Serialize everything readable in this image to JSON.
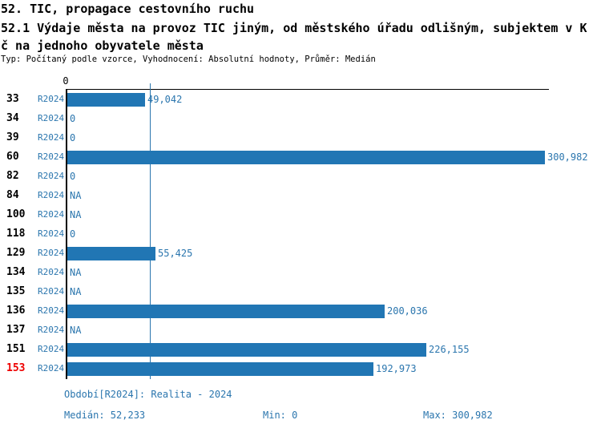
{
  "header": {
    "title": "52. TIC, propagace cestovního ruchu",
    "subtitle_lines": [
      "52.1 Výdaje města na provoz TIC jiným, od městského úřadu odlišným, subjektem v K",
      "č na jednoho obyvatele města"
    ],
    "meta": "Typ: Počítaný podle vzorce, Vyhodnocení: Absolutní hodnoty, Průměr: Medián"
  },
  "chart_data": {
    "type": "bar",
    "orientation": "horizontal",
    "title": "52.1 Výdaje města na provoz TIC jiným, od městského úřadu odlišným, subjektem v Kč na jednoho obyvatele města",
    "series_name": "R2024",
    "zero_tick": "0",
    "categories": [
      "33",
      "34",
      "39",
      "60",
      "82",
      "84",
      "100",
      "118",
      "129",
      "134",
      "135",
      "136",
      "137",
      "151",
      "153"
    ],
    "values": [
      49042,
      0,
      0,
      300982,
      0,
      null,
      null,
      0,
      55425,
      null,
      null,
      200036,
      null,
      226155,
      192973
    ],
    "value_labels": [
      "49,042",
      "0",
      "0",
      "300,982",
      "0",
      "NA",
      "NA",
      "0",
      "55,425",
      "NA",
      "NA",
      "200,036",
      "NA",
      "226,155",
      "192,973"
    ],
    "highlighted_category": "153",
    "xlim": [
      0,
      300982
    ],
    "median": 52233,
    "min": 0,
    "max": 300982,
    "grid": false,
    "legend": false
  },
  "footer": {
    "period": "Období[R2024]: Realita - 2024",
    "median": "Medián: 52,233",
    "min": "Min: 0",
    "max": "Max: 300,982"
  },
  "colors": {
    "bar": "#2176b4",
    "accent_text": "#2b76ae",
    "highlight": "#ee0000",
    "axis": "#000000"
  }
}
